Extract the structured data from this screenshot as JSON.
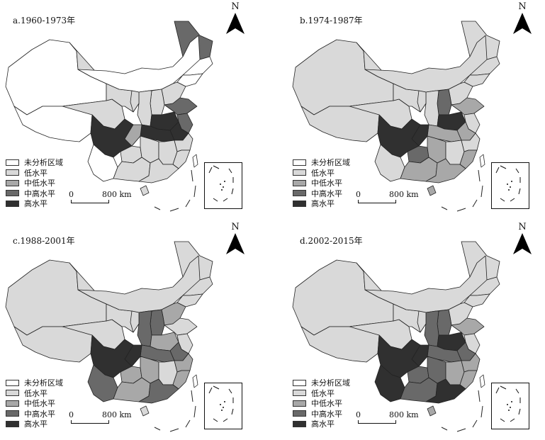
{
  "colors": {
    "unanalyzed": "#ffffff",
    "low": "#d9d9d9",
    "mid_low": "#a8a8a8",
    "mid_high": "#696969",
    "high": "#303030"
  },
  "north_label": "N",
  "legend_items": [
    {
      "key": "unanalyzed",
      "label": "未分析区域"
    },
    {
      "key": "low",
      "label": "低水平"
    },
    {
      "key": "mid_low",
      "label": "中低水平"
    },
    {
      "key": "mid_high",
      "label": "中高水平"
    },
    {
      "key": "high",
      "label": "高水平"
    }
  ],
  "scale": {
    "zero": "0",
    "distance": "800 km"
  },
  "panels": [
    {
      "title": "a.1960-1973年",
      "regions": {
        "xinjiang": "unanalyzed",
        "tibet": "unanalyzed",
        "qinghai": "low",
        "gansu": "low",
        "neimenggu": "unanalyzed",
        "heilongjiang": "mid_high",
        "jilin": "unanalyzed",
        "liaoning": "unanalyzed",
        "hebei": "low",
        "shanxi": "low",
        "shaanxi": "low",
        "ningxia": "low",
        "henan": "high",
        "shandong": "mid_high",
        "sichuan": "high",
        "chongqing": "mid_low",
        "hubei": "high",
        "anhui": "high",
        "jiangsu": "mid_high",
        "yunnan": "unanalyzed",
        "guizhou": "low",
        "hunan": "low",
        "jiangxi": "low",
        "zhejiang": "low",
        "fujian": "low",
        "guangxi": "low",
        "guangdong": "low",
        "hainan": "low",
        "taiwan": "unanalyzed"
      }
    },
    {
      "title": "b.1974-1987年",
      "regions": {
        "xinjiang": "low",
        "tibet": "low",
        "qinghai": "low",
        "gansu": "low",
        "neimenggu": "low",
        "heilongjiang": "low",
        "jilin": "low",
        "liaoning": "low",
        "hebei": "low",
        "shanxi": "mid_high",
        "shaanxi": "low",
        "ningxia": "low",
        "henan": "high",
        "shandong": "mid_low",
        "sichuan": "high",
        "chongqing": "high",
        "hubei": "mid_low",
        "anhui": "mid_low",
        "jiangsu": "low",
        "yunnan": "low",
        "guizhou": "mid_high",
        "hunan": "mid_low",
        "jiangxi": "low",
        "zhejiang": "low",
        "fujian": "mid_low",
        "guangxi": "mid_low",
        "guangdong": "mid_low",
        "hainan": "mid_low",
        "taiwan": "unanalyzed"
      }
    },
    {
      "title": "c.1988-2001年",
      "regions": {
        "xinjiang": "low",
        "tibet": "low",
        "qinghai": "low",
        "gansu": "low",
        "neimenggu": "low",
        "heilongjiang": "low",
        "jilin": "low",
        "liaoning": "low",
        "hebei": "mid_low",
        "shanxi": "mid_high",
        "shaanxi": "mid_high",
        "ningxia": "low",
        "henan": "mid_low",
        "shandong": "low",
        "sichuan": "high",
        "chongqing": "high",
        "hubei": "mid_high",
        "anhui": "mid_high",
        "jiangsu": "low",
        "yunnan": "mid_high",
        "guizhou": "mid_low",
        "hunan": "mid_low",
        "jiangxi": "low",
        "zhejiang": "mid_low",
        "fujian": "mid_low",
        "guangxi": "mid_low",
        "guangdong": "mid_high",
        "hainan": "low",
        "taiwan": "unanalyzed"
      }
    },
    {
      "title": "d.2002-2015年",
      "regions": {
        "xinjiang": "low",
        "tibet": "low",
        "qinghai": "low",
        "gansu": "low",
        "neimenggu": "low",
        "heilongjiang": "low",
        "jilin": "low",
        "liaoning": "low",
        "hebei": "low",
        "shanxi": "mid_high",
        "shaanxi": "mid_high",
        "ningxia": "low",
        "henan": "high",
        "shandong": "mid_low",
        "sichuan": "high",
        "chongqing": "high",
        "hubei": "mid_high",
        "anhui": "mid_high",
        "jiangsu": "low",
        "yunnan": "high",
        "guizhou": "mid_high",
        "hunan": "mid_high",
        "jiangxi": "mid_low",
        "zhejiang": "mid_low",
        "fujian": "mid_low",
        "guangxi": "mid_high",
        "guangdong": "high",
        "hainan": "mid_low",
        "taiwan": "unanalyzed"
      }
    }
  ]
}
